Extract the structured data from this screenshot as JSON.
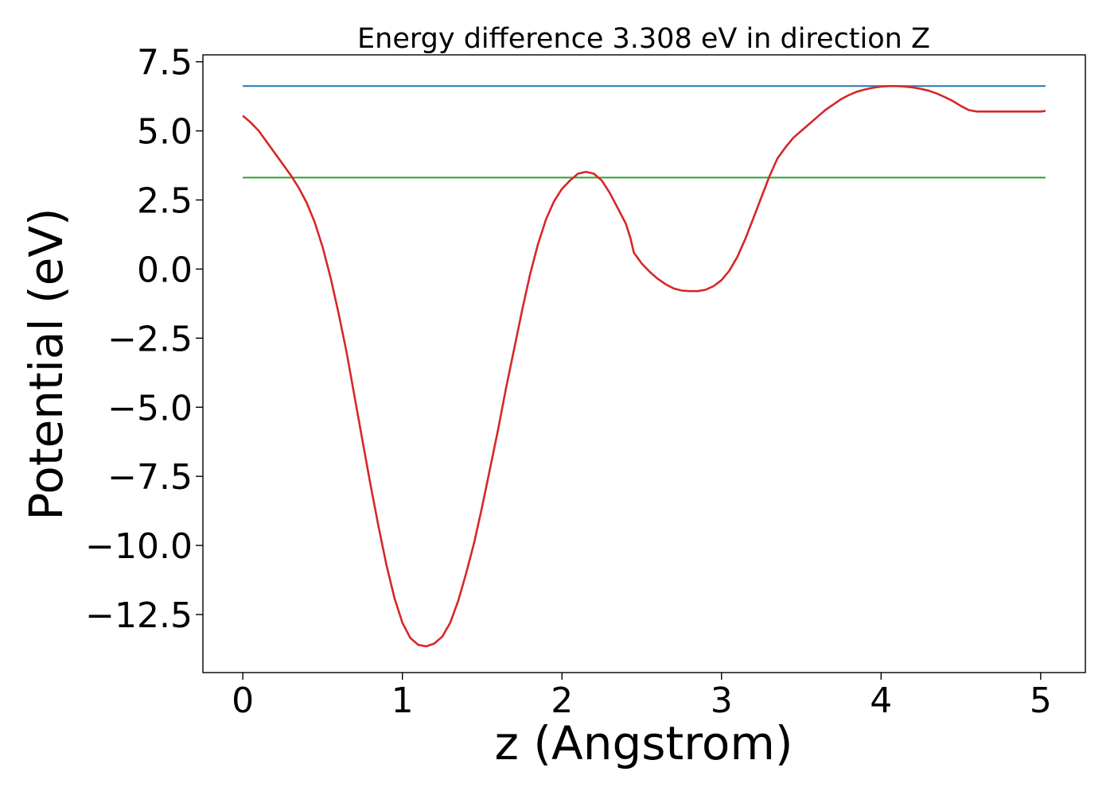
{
  "chart_data": {
    "type": "line",
    "title": "Energy difference 3.308 eV in direction Z",
    "xlabel": "z (Angstrom)",
    "ylabel": "Potential (eV)",
    "xlim": [
      -0.25,
      5.28
    ],
    "ylim": [
      -14.6,
      7.75
    ],
    "xticks": [
      0,
      1,
      2,
      3,
      4,
      5
    ],
    "xtick_labels": [
      "0",
      "1",
      "2",
      "3",
      "4",
      "5"
    ],
    "yticks": [
      7.5,
      5.0,
      2.5,
      0.0,
      -2.5,
      -5.0,
      -7.5,
      -10.0,
      -12.5
    ],
    "ytick_labels": [
      "7.5",
      "5.0",
      "2.5",
      "0.0",
      "−2.5",
      "−5.0",
      "−7.5",
      "−10.0",
      "−12.5"
    ],
    "grid": false,
    "series": [
      {
        "color": "#1f77b4",
        "x": [
          0,
          5.03
        ],
        "y": [
          6.62,
          6.62
        ]
      },
      {
        "color": "#2ca02c",
        "x": [
          0,
          5.03
        ],
        "y": [
          3.31,
          3.31
        ]
      },
      {
        "color": "#d62728",
        "x": [
          0,
          0.05,
          0.1,
          0.15,
          0.2,
          0.25,
          0.3,
          0.35,
          0.4,
          0.45,
          0.5,
          0.55,
          0.6,
          0.65,
          0.7,
          0.75,
          0.8,
          0.85,
          0.9,
          0.95,
          1.0,
          1.05,
          1.1,
          1.15,
          1.2,
          1.25,
          1.3,
          1.35,
          1.4,
          1.45,
          1.5,
          1.55,
          1.6,
          1.65,
          1.7,
          1.75,
          1.8,
          1.85,
          1.9,
          1.95,
          2.0,
          2.05,
          2.1,
          2.15,
          2.2,
          2.25,
          2.3,
          2.35,
          2.4,
          2.43,
          2.45,
          2.5,
          2.55,
          2.6,
          2.65,
          2.7,
          2.75,
          2.8,
          2.85,
          2.9,
          2.95,
          3.0,
          3.05,
          3.1,
          3.15,
          3.2,
          3.25,
          3.3,
          3.35,
          3.4,
          3.45,
          3.5,
          3.55,
          3.6,
          3.65,
          3.7,
          3.75,
          3.8,
          3.85,
          3.9,
          3.95,
          4.0,
          4.05,
          4.1,
          4.15,
          4.2,
          4.25,
          4.3,
          4.35,
          4.4,
          4.45,
          4.5,
          4.55,
          4.6,
          4.65,
          4.7,
          4.75,
          4.8,
          4.85,
          4.9,
          4.95,
          5.0,
          5.03
        ],
        "y": [
          5.55,
          5.3,
          5.0,
          4.6,
          4.2,
          3.8,
          3.4,
          2.95,
          2.4,
          1.7,
          0.8,
          -0.3,
          -1.6,
          -3.0,
          -4.6,
          -6.2,
          -7.8,
          -9.3,
          -10.7,
          -11.9,
          -12.8,
          -13.35,
          -13.6,
          -13.65,
          -13.55,
          -13.3,
          -12.8,
          -12.0,
          -11.0,
          -9.9,
          -8.6,
          -7.2,
          -5.8,
          -4.3,
          -2.9,
          -1.5,
          -0.2,
          0.9,
          1.8,
          2.45,
          2.9,
          3.2,
          3.45,
          3.52,
          3.45,
          3.2,
          2.75,
          2.2,
          1.65,
          1.1,
          0.6,
          0.2,
          -0.1,
          -0.35,
          -0.55,
          -0.7,
          -0.78,
          -0.8,
          -0.8,
          -0.75,
          -0.62,
          -0.4,
          -0.05,
          0.45,
          1.1,
          1.85,
          2.6,
          3.35,
          4.0,
          4.4,
          4.75,
          5.0,
          5.25,
          5.5,
          5.75,
          5.95,
          6.15,
          6.3,
          6.42,
          6.5,
          6.56,
          6.6,
          6.62,
          6.62,
          6.6,
          6.57,
          6.52,
          6.45,
          6.35,
          6.22,
          6.08,
          5.9,
          5.75,
          5.7,
          5.7,
          5.7,
          5.7,
          5.7,
          5.7,
          5.7,
          5.7,
          5.7,
          5.72
        ]
      }
    ]
  }
}
